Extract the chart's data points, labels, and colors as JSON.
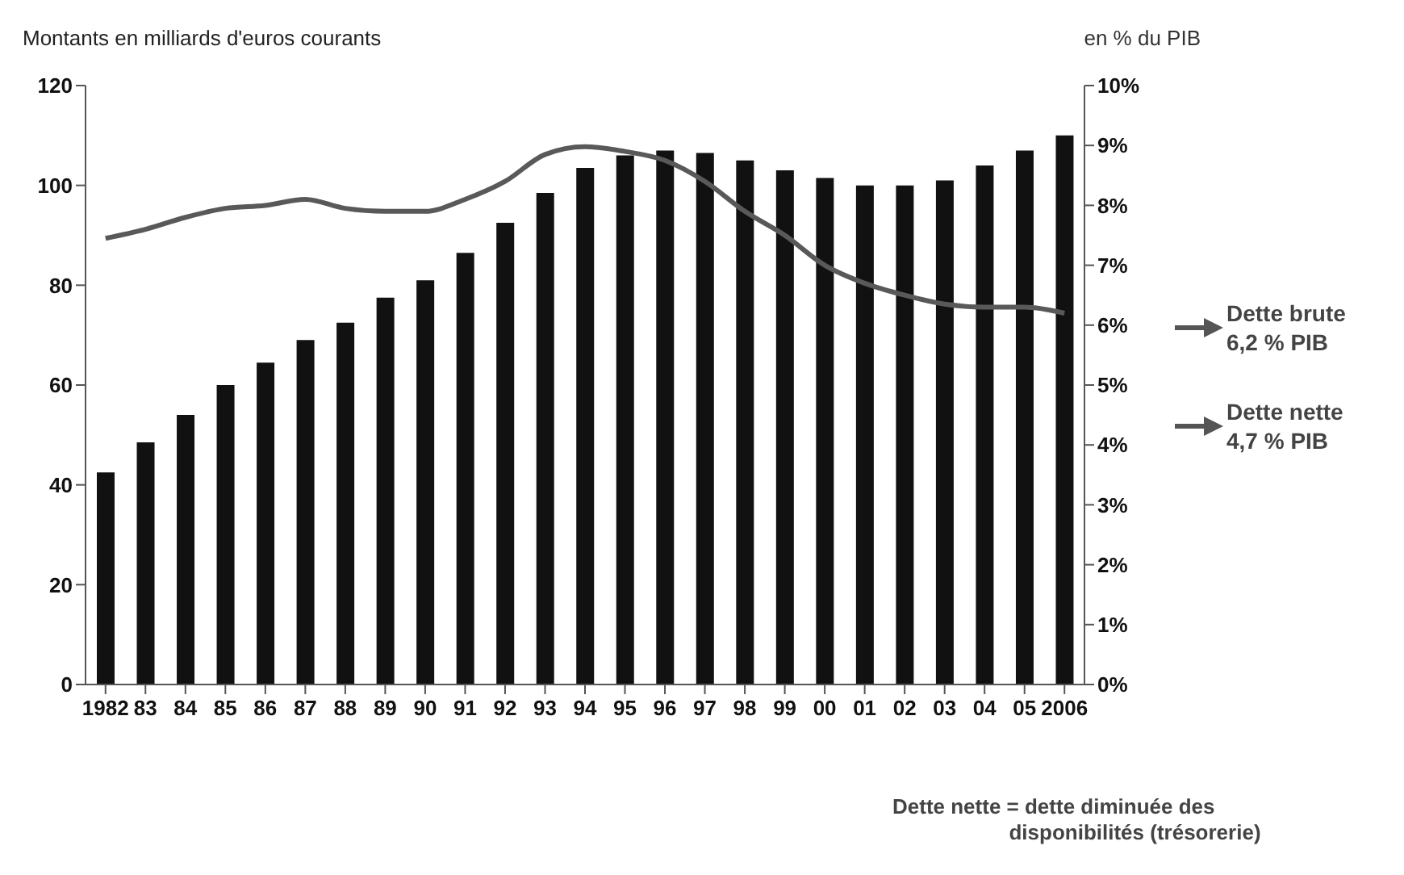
{
  "chart_data": {
    "type": "bar",
    "ylabel": "Montants en milliards d'euros courants",
    "y2label": "en % du PIB",
    "categories": [
      "1982",
      "83",
      "84",
      "85",
      "86",
      "87",
      "88",
      "89",
      "90",
      "91",
      "92",
      "93",
      "94",
      "95",
      "96",
      "97",
      "98",
      "99",
      "00",
      "01",
      "02",
      "03",
      "04",
      "05",
      "2006"
    ],
    "series": [
      {
        "color": "#111111",
        "values": [
          42.5,
          48.5,
          54,
          60,
          64.5,
          69,
          72.5,
          77.5,
          81,
          86.5,
          92.5,
          98.5,
          103.5,
          106,
          107,
          106.5,
          105,
          103,
          101.5,
          100,
          100,
          101,
          104,
          107,
          110
        ]
      },
      {
        "type": "line",
        "axis": "y2",
        "color": "#595959",
        "values": [
          7.45,
          7.6,
          7.8,
          7.95,
          8.0,
          8.1,
          7.95,
          7.9,
          7.9,
          8.1,
          8.4,
          8.85,
          8.98,
          8.9,
          8.75,
          8.4,
          7.9,
          7.5,
          7.0,
          6.7,
          6.5,
          6.35,
          6.3,
          6.3,
          6.2
        ]
      }
    ],
    "ylim": [
      0,
      120
    ],
    "yticks": [
      0,
      20,
      40,
      60,
      80,
      100,
      120
    ],
    "y2lim": [
      0,
      10
    ],
    "y2ticks": [
      {
        "value": 0,
        "label": "0%"
      },
      {
        "value": 1,
        "label": "1%"
      },
      {
        "value": 2,
        "label": "2%"
      },
      {
        "value": 3,
        "label": "3%"
      },
      {
        "value": 4,
        "label": "4%"
      },
      {
        "value": 5,
        "label": "5%"
      },
      {
        "value": 6,
        "label": "6%"
      },
      {
        "value": 7,
        "label": "7%"
      },
      {
        "value": 8,
        "label": "8%"
      },
      {
        "value": 9,
        "label": "9%"
      },
      {
        "value": 10,
        "label": "10%"
      }
    ],
    "grid": false,
    "legend": false,
    "marker": "none",
    "annotations": [
      "Dette brute\n6,2 % PIB",
      "Dette nette\n4,7 % PIB",
      "Dette nette = dette diminuée des\n                    disponibilités (trésorerie)"
    ]
  }
}
